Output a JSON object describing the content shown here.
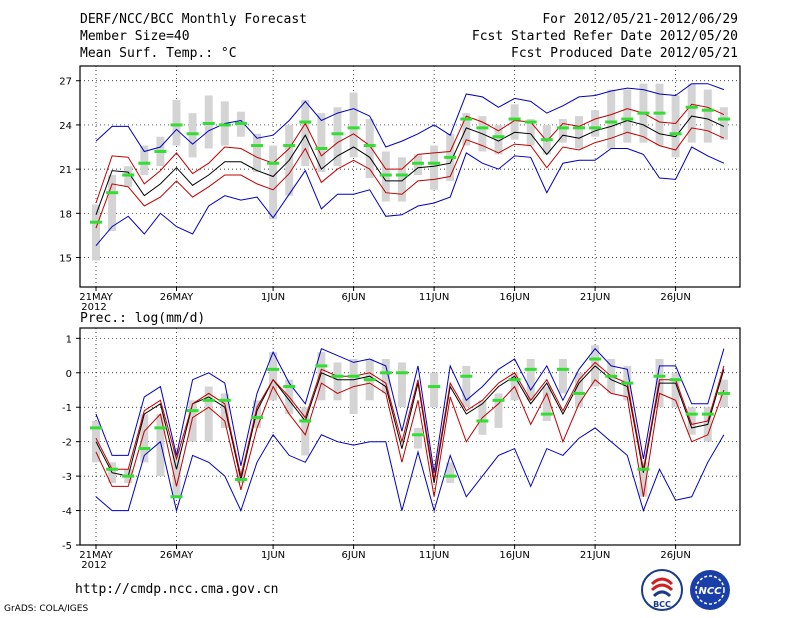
{
  "header": {
    "left": [
      "DERF/NCC/BCC Monthly Forecast",
      "Member Size=40",
      "Mean Surf. Temp.: °C"
    ],
    "right": [
      "For 2012/05/21-2012/06/29",
      "Fcst Started Refer Date 2012/05/20",
      "Fcst Produced Date 2012/05/21"
    ]
  },
  "footer": {
    "url": "http://cmdp.ncc.cma.gov.cn",
    "grads": "GrADS: COLA/IGES"
  },
  "logos": {
    "left_text": "BCC",
    "right_text": "NCC"
  },
  "colors": {
    "mean": "#000000",
    "inner": "#c00000",
    "outer": "#0000c0",
    "box": "#d4d4d4",
    "median": "#33dd33"
  },
  "chart_data": [
    {
      "type": "line",
      "title": "Mean Surf. Temp.: °C",
      "xlabels": [
        {
          "day": 0,
          "label": "21MAY",
          "sub": "2012"
        },
        {
          "day": 5,
          "label": "26MAY"
        },
        {
          "day": 11,
          "label": "1JUN"
        },
        {
          "day": 16,
          "label": "6JUN"
        },
        {
          "day": 21,
          "label": "11JUN"
        },
        {
          "day": 26,
          "label": "16JUN"
        },
        {
          "day": 31,
          "label": "21JUN"
        },
        {
          "day": 36,
          "label": "26JUN"
        }
      ],
      "yticks": [
        15,
        18,
        21,
        24,
        27
      ],
      "ylim": [
        13,
        28
      ],
      "x": [
        0,
        1,
        2,
        3,
        4,
        5,
        6,
        7,
        8,
        9,
        10,
        11,
        12,
        13,
        14,
        15,
        16,
        17,
        18,
        19,
        20,
        21,
        22,
        23,
        24,
        25,
        26,
        27,
        28,
        29,
        30,
        31,
        32,
        33,
        34,
        35,
        36,
        37,
        38,
        39
      ],
      "series": [
        {
          "name": "mean",
          "values": [
            17.9,
            20.9,
            20.8,
            19.2,
            20.0,
            21.1,
            19.9,
            20.6,
            21.5,
            21.5,
            20.9,
            20.5,
            21.6,
            23.3,
            21.0,
            21.9,
            22.5,
            21.8,
            20.2,
            20.2,
            21.1,
            21.2,
            21.4,
            23.8,
            23.4,
            22.9,
            23.5,
            23.4,
            22.0,
            23.3,
            23.1,
            23.6,
            23.9,
            24.3,
            24.0,
            23.4,
            23.2,
            24.6,
            24.4,
            23.9
          ]
        },
        {
          "name": "upper_inner",
          "values": [
            18.7,
            21.9,
            21.8,
            20.0,
            20.9,
            22.1,
            20.7,
            21.4,
            22.5,
            22.4,
            21.8,
            21.4,
            22.4,
            24.1,
            21.9,
            22.8,
            23.4,
            22.6,
            21.0,
            21.0,
            22.0,
            22.1,
            22.2,
            24.6,
            24.2,
            23.6,
            24.3,
            24.2,
            22.9,
            24.1,
            23.9,
            24.4,
            24.7,
            25.1,
            24.8,
            24.2,
            24.1,
            25.4,
            25.2,
            24.7
          ]
        },
        {
          "name": "lower_inner",
          "values": [
            17.0,
            20.0,
            19.8,
            18.5,
            19.1,
            20.2,
            19.1,
            19.8,
            20.6,
            20.6,
            20.0,
            19.6,
            20.7,
            22.4,
            20.1,
            21.0,
            21.6,
            21.0,
            19.4,
            19.3,
            20.2,
            20.3,
            20.5,
            23.0,
            22.6,
            22.1,
            22.7,
            22.6,
            21.1,
            22.5,
            22.3,
            22.8,
            23.1,
            23.5,
            23.2,
            22.6,
            22.3,
            23.8,
            23.6,
            23.1
          ]
        },
        {
          "name": "upper_outer",
          "values": [
            22.9,
            23.9,
            23.9,
            22.2,
            22.5,
            23.7,
            22.7,
            23.6,
            24.1,
            24.3,
            23.1,
            23.3,
            24.3,
            25.6,
            24.3,
            24.8,
            25.1,
            24.6,
            22.5,
            22.9,
            23.4,
            24.0,
            23.3,
            26.1,
            25.9,
            25.2,
            25.8,
            25.6,
            24.8,
            25.3,
            25.9,
            26.0,
            26.3,
            26.5,
            26.4,
            26.1,
            26.0,
            26.8,
            26.8,
            26.4
          ]
        },
        {
          "name": "lower_outer",
          "values": [
            15.8,
            17.1,
            17.8,
            16.6,
            18.0,
            17.1,
            16.6,
            18.5,
            19.2,
            18.9,
            19.1,
            17.7,
            19.3,
            20.9,
            18.3,
            19.3,
            19.3,
            19.6,
            17.8,
            17.9,
            18.5,
            18.7,
            19.1,
            22.1,
            21.4,
            21.0,
            21.9,
            21.8,
            19.4,
            21.4,
            21.6,
            21.6,
            22.4,
            22.4,
            22.0,
            20.4,
            20.3,
            22.5,
            21.9,
            21.4
          ]
        }
      ],
      "boxes": [
        {
          "lo": 14.8,
          "hi": 18.6,
          "med": 17.4
        },
        {
          "lo": 16.8,
          "hi": 20.6,
          "med": 19.4
        },
        {
          "lo": 19.8,
          "hi": 21.2,
          "med": 20.6
        },
        {
          "lo": 20.6,
          "hi": 22.6,
          "med": 21.4
        },
        {
          "lo": 21.2,
          "hi": 23.2,
          "med": 22.2
        },
        {
          "lo": 22.6,
          "hi": 25.7,
          "med": 24.0
        },
        {
          "lo": 21.8,
          "hi": 24.8,
          "med": 23.4
        },
        {
          "lo": 22.4,
          "hi": 26.0,
          "med": 24.1
        },
        {
          "lo": 22.6,
          "hi": 25.6,
          "med": 24.0
        },
        {
          "lo": 23.2,
          "hi": 24.9,
          "med": 24.1
        },
        {
          "lo": 20.8,
          "hi": 23.4,
          "med": 22.6
        },
        {
          "lo": 17.6,
          "hi": 22.6,
          "med": 21.4
        },
        {
          "lo": 19.2,
          "hi": 24.0,
          "med": 22.6
        },
        {
          "lo": 21.2,
          "hi": 25.7,
          "med": 24.2
        },
        {
          "lo": 20.8,
          "hi": 24.8,
          "med": 22.4
        },
        {
          "lo": 21.2,
          "hi": 25.2,
          "med": 23.4
        },
        {
          "lo": 21.8,
          "hi": 26.2,
          "med": 23.8
        },
        {
          "lo": 20.4,
          "hi": 24.4,
          "med": 22.6
        },
        {
          "lo": 18.8,
          "hi": 22.2,
          "med": 20.6
        },
        {
          "lo": 18.8,
          "hi": 21.8,
          "med": 20.6
        },
        {
          "lo": 20.6,
          "hi": 22.0,
          "med": 21.4
        },
        {
          "lo": 19.6,
          "hi": 22.6,
          "med": 21.4
        },
        {
          "lo": 20.2,
          "hi": 23.4,
          "med": 21.8
        },
        {
          "lo": 22.6,
          "hi": 24.8,
          "med": 24.4
        },
        {
          "lo": 22.2,
          "hi": 24.6,
          "med": 23.8
        },
        {
          "lo": 22.0,
          "hi": 24.0,
          "med": 23.2
        },
        {
          "lo": 23.0,
          "hi": 25.4,
          "med": 24.4
        },
        {
          "lo": 22.6,
          "hi": 24.4,
          "med": 24.2
        },
        {
          "lo": 22.0,
          "hi": 24.0,
          "med": 23.0
        },
        {
          "lo": 22.8,
          "hi": 24.4,
          "med": 23.8
        },
        {
          "lo": 22.4,
          "hi": 24.6,
          "med": 23.8
        },
        {
          "lo": 23.2,
          "hi": 25.0,
          "med": 23.8
        },
        {
          "lo": 22.4,
          "hi": 26.4,
          "med": 24.2
        },
        {
          "lo": 22.8,
          "hi": 26.4,
          "med": 24.4
        },
        {
          "lo": 22.8,
          "hi": 26.8,
          "med": 24.8
        },
        {
          "lo": 22.6,
          "hi": 26.8,
          "med": 24.8
        },
        {
          "lo": 21.8,
          "hi": 26.0,
          "med": 23.4
        },
        {
          "lo": 22.8,
          "hi": 26.8,
          "med": 25.2
        },
        {
          "lo": 22.8,
          "hi": 26.4,
          "med": 25.0
        },
        {
          "lo": 23.0,
          "hi": 25.2,
          "med": 24.4
        }
      ]
    },
    {
      "type": "line",
      "title": "Prec.: log(mm/d)",
      "xlabels": [
        {
          "day": 0,
          "label": "21MAY",
          "sub": "2012"
        },
        {
          "day": 5,
          "label": "26MAY"
        },
        {
          "day": 11,
          "label": "1JUN"
        },
        {
          "day": 16,
          "label": "6JUN"
        },
        {
          "day": 21,
          "label": "11JUN"
        },
        {
          "day": 26,
          "label": "16JUN"
        },
        {
          "day": 31,
          "label": "21JUN"
        },
        {
          "day": 36,
          "label": "26JUN"
        }
      ],
      "yticks": [
        -5,
        -4,
        -3,
        -2,
        -1,
        0,
        1
      ],
      "ylim": [
        -5,
        1.3
      ],
      "x": [
        0,
        1,
        2,
        3,
        4,
        5,
        6,
        7,
        8,
        9,
        10,
        11,
        12,
        13,
        14,
        15,
        16,
        17,
        18,
        19,
        20,
        21,
        22,
        23,
        24,
        25,
        26,
        27,
        28,
        29,
        30,
        31,
        32,
        33,
        34,
        35,
        36,
        37,
        38,
        39
      ],
      "series": [
        {
          "name": "mean",
          "values": [
            -2.0,
            -2.9,
            -3.0,
            -1.2,
            -0.9,
            -2.8,
            -0.9,
            -0.7,
            -1.0,
            -3.1,
            -1.1,
            -0.2,
            -0.8,
            -1.4,
            0.0,
            -0.2,
            -0.2,
            -0.1,
            -0.4,
            -2.2,
            -0.3,
            -3.2,
            -0.4,
            -1.2,
            -0.9,
            -0.4,
            -0.1,
            -0.9,
            -0.3,
            -1.2,
            -0.3,
            0.2,
            -0.2,
            -0.4,
            -2.9,
            -0.3,
            -0.3,
            -1.6,
            -1.5,
            0.1
          ]
        },
        {
          "name": "upper_inner",
          "values": [
            -1.9,
            -2.8,
            -2.8,
            -1.1,
            -0.8,
            -2.5,
            -0.9,
            -0.6,
            -0.9,
            -3.0,
            -1.0,
            -0.2,
            -0.7,
            -1.3,
            0.1,
            -0.1,
            -0.1,
            0.0,
            -0.3,
            -2.0,
            -0.2,
            -3.1,
            -0.3,
            -1.1,
            -0.8,
            -0.3,
            0.0,
            -0.8,
            -0.2,
            -1.1,
            -0.2,
            0.3,
            -0.1,
            -0.3,
            -2.8,
            -0.2,
            -0.2,
            -1.5,
            -1.4,
            0.2
          ]
        },
        {
          "name": "lower_inner",
          "values": [
            -2.3,
            -3.3,
            -3.3,
            -1.7,
            -1.2,
            -3.3,
            -1.3,
            -1.0,
            -1.4,
            -3.4,
            -1.6,
            -0.4,
            -1.2,
            -1.8,
            -0.3,
            -0.6,
            -0.4,
            -0.3,
            -0.6,
            -2.6,
            -0.8,
            -3.6,
            -0.7,
            -2.0,
            -1.3,
            -0.9,
            -0.4,
            -1.5,
            -0.6,
            -2.0,
            -0.9,
            -0.2,
            -0.6,
            -0.7,
            -3.6,
            -0.6,
            -0.8,
            -2.0,
            -1.8,
            -0.5
          ]
        },
        {
          "name": "upper_outer",
          "values": [
            -1.2,
            -2.4,
            -2.4,
            -0.7,
            -0.4,
            -2.4,
            -0.2,
            0.0,
            -0.3,
            -2.7,
            -0.6,
            0.6,
            -0.3,
            -0.9,
            0.7,
            0.5,
            0.3,
            0.4,
            0.2,
            -1.7,
            0.2,
            -2.9,
            0.2,
            -0.8,
            -0.4,
            0.1,
            0.4,
            -0.5,
            0.2,
            -0.8,
            0.1,
            0.7,
            0.2,
            0.1,
            -2.5,
            0.2,
            0.2,
            -0.9,
            -0.9,
            0.7
          ]
        },
        {
          "name": "lower_outer",
          "values": [
            -3.6,
            -4.0,
            -4.0,
            -2.4,
            -2.0,
            -4.0,
            -2.4,
            -2.6,
            -3.0,
            -4.0,
            -2.6,
            -1.8,
            -2.4,
            -2.6,
            -1.8,
            -2.0,
            -2.1,
            -2.0,
            -2.0,
            -4.0,
            -2.3,
            -4.0,
            -2.4,
            -3.6,
            -3.0,
            -2.4,
            -2.2,
            -3.3,
            -2.2,
            -2.4,
            -1.9,
            -1.6,
            -2.0,
            -2.4,
            -4.0,
            -2.8,
            -3.7,
            -3.6,
            -2.6,
            -1.8
          ]
        }
      ],
      "boxes": [
        {
          "lo": -2.6,
          "hi": -1.4,
          "med": -1.6
        },
        {
          "lo": -3.2,
          "hi": -2.6,
          "med": -2.8
        },
        {
          "lo": -3.2,
          "hi": -2.8,
          "med": -3.0
        },
        {
          "lo": -2.6,
          "hi": -1.2,
          "med": -2.2
        },
        {
          "lo": -3.0,
          "hi": -1.2,
          "med": -1.6
        },
        {
          "lo": -3.6,
          "hi": -2.2,
          "med": -3.6
        },
        {
          "lo": -2.0,
          "hi": -0.8,
          "med": -1.1
        },
        {
          "lo": -2.0,
          "hi": -0.4,
          "med": -0.8
        },
        {
          "lo": -1.6,
          "hi": -0.6,
          "med": -0.8
        },
        {
          "lo": -3.2,
          "hi": -2.8,
          "med": -3.1
        },
        {
          "lo": -1.6,
          "hi": -0.8,
          "med": -1.3
        },
        {
          "lo": -0.8,
          "hi": 0.6,
          "med": 0.1
        },
        {
          "lo": -1.2,
          "hi": -0.2,
          "med": -0.4
        },
        {
          "lo": -2.4,
          "hi": -1.0,
          "med": -1.4
        },
        {
          "lo": -0.8,
          "hi": 0.6,
          "med": 0.2
        },
        {
          "lo": -0.8,
          "hi": 0.3,
          "med": -0.1
        },
        {
          "lo": -1.2,
          "hi": 0.4,
          "med": -0.1
        },
        {
          "lo": -0.8,
          "hi": 0.4,
          "med": -0.2
        },
        {
          "lo": -0.6,
          "hi": 0.4,
          "med": 0.0
        },
        {
          "lo": -1.0,
          "hi": 0.3,
          "med": 0.0
        },
        {
          "lo": -2.2,
          "hi": -1.6,
          "med": -1.8
        },
        {
          "lo": -1.0,
          "hi": 0.0,
          "med": -0.4
        },
        {
          "lo": -3.2,
          "hi": -2.6,
          "med": -3.0
        },
        {
          "lo": -1.0,
          "hi": 0.2,
          "med": -0.1
        },
        {
          "lo": -1.8,
          "hi": -0.8,
          "med": -1.4
        },
        {
          "lo": -1.6,
          "hi": -0.6,
          "med": -0.8
        },
        {
          "lo": -0.8,
          "hi": 0.0,
          "med": -0.2
        },
        {
          "lo": -0.8,
          "hi": 0.4,
          "med": 0.1
        },
        {
          "lo": -1.4,
          "hi": -0.4,
          "med": -1.2
        },
        {
          "lo": -0.6,
          "hi": 0.4,
          "med": 0.1
        },
        {
          "lo": -1.0,
          "hi": 0.0,
          "med": -0.6
        },
        {
          "lo": -0.4,
          "hi": 0.8,
          "med": 0.4
        },
        {
          "lo": -0.6,
          "hi": 0.4,
          "med": -0.1
        },
        {
          "lo": -0.8,
          "hi": 0.2,
          "med": -0.3
        },
        {
          "lo": -3.6,
          "hi": -2.6,
          "med": -2.8
        },
        {
          "lo": -1.0,
          "hi": 0.4,
          "med": -0.1
        },
        {
          "lo": -1.0,
          "hi": 0.0,
          "med": -0.2
        },
        {
          "lo": -1.8,
          "hi": -1.0,
          "med": -1.2
        },
        {
          "lo": -2.0,
          "hi": -1.0,
          "med": -1.2
        },
        {
          "lo": -1.0,
          "hi": -0.2,
          "med": -0.6
        }
      ]
    }
  ]
}
